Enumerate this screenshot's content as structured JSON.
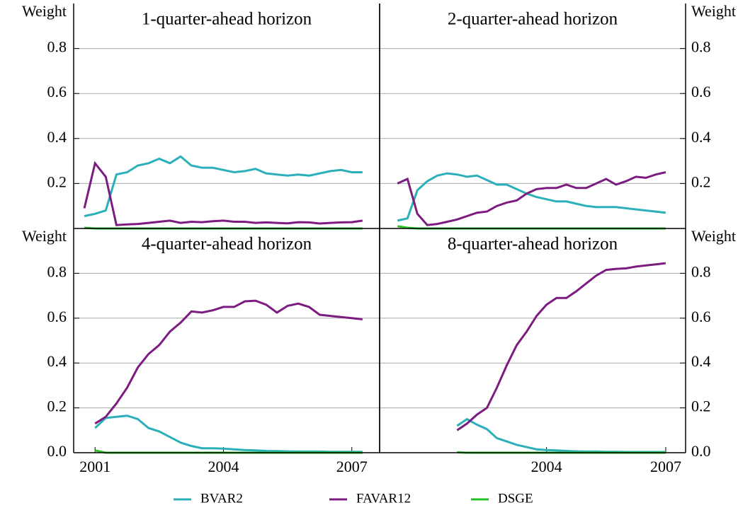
{
  "chart_data": [
    {
      "type": "line",
      "title": "1-quarter-ahead horizon",
      "y_label": "Weight",
      "axis_side": "left",
      "grid": true,
      "xlim": [
        2000.5,
        2007.65
      ],
      "ylim": [
        0,
        1
      ],
      "yticks": [
        0.2,
        0.4,
        0.6,
        0.8
      ],
      "x": [
        2000.75,
        2001,
        2001.25,
        2001.5,
        2001.75,
        2002,
        2002.25,
        2002.5,
        2002.75,
        2003,
        2003.25,
        2003.5,
        2003.75,
        2004,
        2004.25,
        2004.5,
        2004.75,
        2005,
        2005.25,
        2005.5,
        2005.75,
        2006,
        2006.25,
        2006.5,
        2006.75,
        2007,
        2007.25
      ],
      "series": [
        {
          "name": "BVAR2",
          "color": "#2bb0ba",
          "values": [
            0.055,
            0.065,
            0.08,
            0.24,
            0.25,
            0.28,
            0.29,
            0.31,
            0.29,
            0.32,
            0.28,
            0.27,
            0.27,
            0.26,
            0.25,
            0.255,
            0.265,
            0.245,
            0.24,
            0.235,
            0.24,
            0.235,
            0.245,
            0.255,
            0.26,
            0.25,
            0.25
          ]
        },
        {
          "name": "FAVAR12",
          "color": "#7d1c80",
          "values": [
            0.09,
            0.29,
            0.23,
            0.015,
            0.018,
            0.02,
            0.025,
            0.03,
            0.035,
            0.025,
            0.03,
            0.028,
            0.032,
            0.035,
            0.03,
            0.03,
            0.025,
            0.027,
            0.025,
            0.023,
            0.028,
            0.027,
            0.022,
            0.025,
            0.027,
            0.028,
            0.035
          ]
        },
        {
          "name": "DSGE",
          "color": "#25c125",
          "values": [
            0.003,
            0,
            0,
            0,
            0,
            0,
            0,
            0,
            0,
            0,
            0,
            0,
            0,
            0,
            0,
            0,
            0,
            0,
            0,
            0,
            0,
            0,
            0,
            0,
            0,
            0,
            0
          ]
        }
      ]
    },
    {
      "type": "line",
      "title": "2-quarter-ahead horizon",
      "y_label": "Weight",
      "axis_side": "right",
      "grid": true,
      "xlim": [
        1999.8,
        2007.5
      ],
      "ylim": [
        0,
        1
      ],
      "yticks": [
        0.2,
        0.4,
        0.6,
        0.8
      ],
      "x": [
        2000.25,
        2000.5,
        2000.75,
        2001,
        2001.25,
        2001.5,
        2001.75,
        2002,
        2002.25,
        2002.5,
        2002.75,
        2003,
        2003.25,
        2003.5,
        2003.75,
        2004,
        2004.25,
        2004.5,
        2004.75,
        2005,
        2005.25,
        2005.5,
        2005.75,
        2006,
        2006.25,
        2006.5,
        2006.75,
        2007
      ],
      "series": [
        {
          "name": "BVAR2",
          "color": "#2bb0ba",
          "values": [
            0.035,
            0.045,
            0.17,
            0.21,
            0.235,
            0.245,
            0.24,
            0.23,
            0.235,
            0.215,
            0.195,
            0.195,
            0.175,
            0.155,
            0.14,
            0.13,
            0.12,
            0.12,
            0.11,
            0.1,
            0.095,
            0.095,
            0.095,
            0.09,
            0.085,
            0.08,
            0.075,
            0.07
          ]
        },
        {
          "name": "FAVAR12",
          "color": "#7d1c80",
          "values": [
            0.2,
            0.22,
            0.065,
            0.015,
            0.02,
            0.03,
            0.04,
            0.055,
            0.07,
            0.075,
            0.1,
            0.115,
            0.125,
            0.155,
            0.175,
            0.18,
            0.18,
            0.195,
            0.18,
            0.18,
            0.2,
            0.22,
            0.195,
            0.21,
            0.23,
            0.225,
            0.24,
            0.25
          ]
        },
        {
          "name": "DSGE",
          "color": "#25c125",
          "values": [
            0.01,
            0.003,
            0,
            0,
            0,
            0,
            0,
            0,
            0,
            0,
            0,
            0,
            0,
            0,
            0,
            0,
            0,
            0,
            0,
            0,
            0,
            0,
            0,
            0,
            0,
            0,
            0,
            0
          ]
        }
      ]
    },
    {
      "type": "line",
      "title": "4-quarter-ahead horizon",
      "y_label": "Weight",
      "axis_side": "left",
      "grid": true,
      "xlim": [
        2000.5,
        2007.65
      ],
      "xticks": [
        2001,
        2004,
        2007
      ],
      "ylim": [
        0,
        1
      ],
      "yticks": [
        {
          "value": 0,
          "label": "0.0"
        },
        0.2,
        0.4,
        0.6,
        0.8
      ],
      "x": [
        2001,
        2001.25,
        2001.5,
        2001.75,
        2002,
        2002.25,
        2002.5,
        2002.75,
        2003,
        2003.25,
        2003.5,
        2003.75,
        2004,
        2004.25,
        2004.5,
        2004.75,
        2005,
        2005.25,
        2005.5,
        2005.75,
        2006,
        2006.25,
        2006.5,
        2006.75,
        2007,
        2007.25
      ],
      "series": [
        {
          "name": "BVAR2",
          "color": "#2bb0ba",
          "values": [
            0.11,
            0.155,
            0.16,
            0.165,
            0.15,
            0.11,
            0.095,
            0.07,
            0.045,
            0.03,
            0.02,
            0.02,
            0.018,
            0.015,
            0.012,
            0.01,
            0.008,
            0.007,
            0.006,
            0.005,
            0.005,
            0.005,
            0.004,
            0.004,
            0.004,
            0.004
          ]
        },
        {
          "name": "FAVAR12",
          "color": "#7d1c80",
          "values": [
            0.13,
            0.16,
            0.22,
            0.29,
            0.38,
            0.44,
            0.48,
            0.54,
            0.58,
            0.63,
            0.625,
            0.635,
            0.65,
            0.65,
            0.675,
            0.678,
            0.66,
            0.625,
            0.655,
            0.665,
            0.65,
            0.615,
            0.61,
            0.605,
            0.6,
            0.595
          ]
        },
        {
          "name": "DSGE",
          "color": "#25c125",
          "values": [
            0.01,
            0,
            0,
            0,
            0,
            0,
            0,
            0,
            0,
            0,
            0,
            0,
            0,
            0,
            0,
            0,
            0,
            0,
            0,
            0,
            0,
            0,
            0,
            0,
            0,
            0
          ]
        }
      ]
    },
    {
      "type": "line",
      "title": "8-quarter-ahead horizon",
      "y_label": "Weight",
      "axis_side": "right",
      "grid": true,
      "xlim": [
        1999.8,
        2007.5
      ],
      "xticks": [
        2004,
        2007
      ],
      "ylim": [
        0,
        1
      ],
      "yticks": [
        {
          "value": 0,
          "label": "0.0"
        },
        0.2,
        0.4,
        0.6,
        0.8
      ],
      "x": [
        2001.75,
        2002,
        2002.25,
        2002.5,
        2002.75,
        2003,
        2003.25,
        2003.5,
        2003.75,
        2004,
        2004.25,
        2004.5,
        2004.75,
        2005,
        2005.25,
        2005.5,
        2005.75,
        2006,
        2006.25,
        2006.5,
        2006.75,
        2007
      ],
      "series": [
        {
          "name": "BVAR2",
          "color": "#2bb0ba",
          "values": [
            0.12,
            0.15,
            0.125,
            0.105,
            0.065,
            0.05,
            0.035,
            0.025,
            0.015,
            0.012,
            0.01,
            0.008,
            0.006,
            0.005,
            0.005,
            0.004,
            0.004,
            0.003,
            0.003,
            0.003,
            0.003,
            0.003
          ]
        },
        {
          "name": "FAVAR12",
          "color": "#7d1c80",
          "values": [
            0.1,
            0.13,
            0.17,
            0.2,
            0.29,
            0.39,
            0.48,
            0.54,
            0.61,
            0.66,
            0.69,
            0.69,
            0.72,
            0.755,
            0.79,
            0.815,
            0.82,
            0.822,
            0.83,
            0.835,
            0.84,
            0.845
          ]
        },
        {
          "name": "DSGE",
          "color": "#25c125",
          "values": [
            0.002,
            0,
            0,
            0,
            0,
            0,
            0,
            0,
            0,
            0,
            0,
            0,
            0,
            0,
            0,
            0,
            0,
            0,
            0,
            0,
            0,
            0
          ]
        }
      ]
    }
  ]
}
